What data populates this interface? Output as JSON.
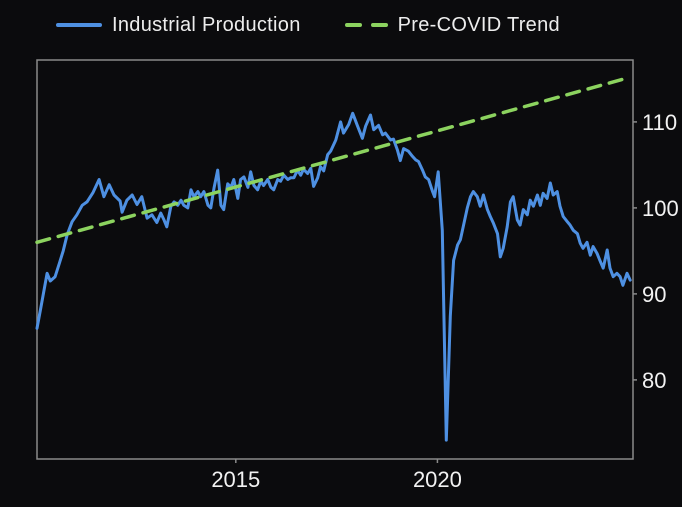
{
  "colors": {
    "background": "#0b0b0d",
    "industrial_production": "#4e90e2",
    "pre_covid_trend": "#8cd35f",
    "frame": "#8a8a8a",
    "text": "#f2f2f2"
  },
  "chart_data": {
    "type": "line",
    "title": "",
    "xlabel": "",
    "ylabel": "",
    "grid": false,
    "legend_position": "top",
    "x_axis": {
      "ticks": [
        2015,
        2020
      ],
      "range": [
        2010.07,
        2024.85
      ]
    },
    "y_axis": {
      "ticks": [
        80,
        90,
        100,
        110
      ],
      "range": [
        70.8,
        117.2
      ],
      "side": "right"
    },
    "series": [
      {
        "name": "Industrial Production",
        "style": "solid",
        "color_key": "industrial_production",
        "points": [
          [
            2010.07,
            86.0
          ],
          [
            2010.17,
            88.5
          ],
          [
            2010.32,
            92.4
          ],
          [
            2010.4,
            91.5
          ],
          [
            2010.52,
            92.0
          ],
          [
            2010.62,
            93.5
          ],
          [
            2010.72,
            95.0
          ],
          [
            2010.82,
            96.9
          ],
          [
            2010.94,
            98.4
          ],
          [
            2011.06,
            99.2
          ],
          [
            2011.19,
            100.3
          ],
          [
            2011.31,
            100.7
          ],
          [
            2011.46,
            101.8
          ],
          [
            2011.61,
            103.3
          ],
          [
            2011.73,
            101.3
          ],
          [
            2011.86,
            102.7
          ],
          [
            2011.98,
            101.5
          ],
          [
            2012.13,
            100.8
          ],
          [
            2012.18,
            99.5
          ],
          [
            2012.3,
            100.9
          ],
          [
            2012.43,
            101.5
          ],
          [
            2012.55,
            100.4
          ],
          [
            2012.67,
            101.3
          ],
          [
            2012.8,
            98.8
          ],
          [
            2012.92,
            99.2
          ],
          [
            2013.04,
            98.3
          ],
          [
            2013.14,
            99.4
          ],
          [
            2013.22,
            98.6
          ],
          [
            2013.29,
            97.8
          ],
          [
            2013.39,
            100.2
          ],
          [
            2013.47,
            100.7
          ],
          [
            2013.56,
            100.3
          ],
          [
            2013.64,
            100.9
          ],
          [
            2013.71,
            100.3
          ],
          [
            2013.81,
            100.0
          ],
          [
            2013.89,
            102.1
          ],
          [
            2013.96,
            101.3
          ],
          [
            2014.06,
            101.9
          ],
          [
            2014.13,
            101.3
          ],
          [
            2014.21,
            101.9
          ],
          [
            2014.31,
            100.3
          ],
          [
            2014.38,
            100.0
          ],
          [
            2014.46,
            102.3
          ],
          [
            2014.55,
            104.4
          ],
          [
            2014.63,
            100.3
          ],
          [
            2014.7,
            99.8
          ],
          [
            2014.8,
            102.8
          ],
          [
            2014.88,
            102.4
          ],
          [
            2014.95,
            103.3
          ],
          [
            2015.05,
            101.1
          ],
          [
            2015.12,
            103.3
          ],
          [
            2015.2,
            103.6
          ],
          [
            2015.3,
            102.4
          ],
          [
            2015.37,
            104.2
          ],
          [
            2015.45,
            102.6
          ],
          [
            2015.54,
            102.1
          ],
          [
            2015.62,
            103.1
          ],
          [
            2015.69,
            102.6
          ],
          [
            2015.79,
            103.3
          ],
          [
            2015.87,
            102.4
          ],
          [
            2015.94,
            102.1
          ],
          [
            2016.04,
            103.3
          ],
          [
            2016.11,
            103.1
          ],
          [
            2016.19,
            103.8
          ],
          [
            2016.29,
            103.3
          ],
          [
            2016.36,
            103.5
          ],
          [
            2016.44,
            103.5
          ],
          [
            2016.53,
            104.4
          ],
          [
            2016.61,
            103.8
          ],
          [
            2016.68,
            104.5
          ],
          [
            2016.78,
            104.0
          ],
          [
            2016.86,
            104.6
          ],
          [
            2016.93,
            102.5
          ],
          [
            2017.03,
            103.5
          ],
          [
            2017.1,
            104.8
          ],
          [
            2017.18,
            104.3
          ],
          [
            2017.28,
            106.2
          ],
          [
            2017.35,
            106.6
          ],
          [
            2017.48,
            107.9
          ],
          [
            2017.6,
            110.0
          ],
          [
            2017.67,
            108.7
          ],
          [
            2017.8,
            109.7
          ],
          [
            2017.9,
            111.0
          ],
          [
            2018.02,
            109.5
          ],
          [
            2018.14,
            108.1
          ],
          [
            2018.22,
            109.5
          ],
          [
            2018.34,
            110.8
          ],
          [
            2018.42,
            109.1
          ],
          [
            2018.54,
            109.6
          ],
          [
            2018.64,
            108.5
          ],
          [
            2018.71,
            108.7
          ],
          [
            2018.84,
            107.9
          ],
          [
            2018.91,
            108.0
          ],
          [
            2019.01,
            106.7
          ],
          [
            2019.08,
            105.5
          ],
          [
            2019.16,
            106.9
          ],
          [
            2019.28,
            106.6
          ],
          [
            2019.38,
            106.0
          ],
          [
            2019.46,
            105.6
          ],
          [
            2019.53,
            105.4
          ],
          [
            2019.63,
            104.4
          ],
          [
            2019.7,
            103.6
          ],
          [
            2019.78,
            103.3
          ],
          [
            2019.88,
            101.9
          ],
          [
            2019.93,
            101.3
          ],
          [
            2020.02,
            104.2
          ],
          [
            2020.12,
            97.4
          ],
          [
            2020.22,
            73.0
          ],
          [
            2020.32,
            87.4
          ],
          [
            2020.4,
            93.9
          ],
          [
            2020.5,
            95.7
          ],
          [
            2020.57,
            96.3
          ],
          [
            2020.64,
            97.8
          ],
          [
            2020.74,
            100.0
          ],
          [
            2020.82,
            101.3
          ],
          [
            2020.89,
            101.9
          ],
          [
            2020.99,
            101.3
          ],
          [
            2021.06,
            100.2
          ],
          [
            2021.14,
            101.5
          ],
          [
            2021.24,
            99.8
          ],
          [
            2021.31,
            99.0
          ],
          [
            2021.39,
            98.2
          ],
          [
            2021.49,
            97.0
          ],
          [
            2021.56,
            94.3
          ],
          [
            2021.63,
            95.3
          ],
          [
            2021.73,
            97.8
          ],
          [
            2021.81,
            100.7
          ],
          [
            2021.88,
            101.3
          ],
          [
            2021.98,
            98.6
          ],
          [
            2022.05,
            98.0
          ],
          [
            2022.13,
            99.8
          ],
          [
            2022.23,
            99.2
          ],
          [
            2022.3,
            100.9
          ],
          [
            2022.38,
            100.2
          ],
          [
            2022.48,
            101.5
          ],
          [
            2022.55,
            100.3
          ],
          [
            2022.62,
            101.7
          ],
          [
            2022.72,
            101.1
          ],
          [
            2022.8,
            102.9
          ],
          [
            2022.87,
            101.5
          ],
          [
            2022.97,
            101.9
          ],
          [
            2023.04,
            100.2
          ],
          [
            2023.12,
            99.0
          ],
          [
            2023.22,
            98.4
          ],
          [
            2023.29,
            98.0
          ],
          [
            2023.37,
            97.4
          ],
          [
            2023.47,
            97.0
          ],
          [
            2023.54,
            95.9
          ],
          [
            2023.61,
            95.3
          ],
          [
            2023.71,
            96.0
          ],
          [
            2023.79,
            94.5
          ],
          [
            2023.86,
            95.5
          ],
          [
            2023.96,
            94.7
          ],
          [
            2024.03,
            93.9
          ],
          [
            2024.11,
            93.0
          ],
          [
            2024.21,
            95.1
          ],
          [
            2024.28,
            93.0
          ],
          [
            2024.36,
            92.0
          ],
          [
            2024.45,
            92.4
          ],
          [
            2024.53,
            92.0
          ],
          [
            2024.6,
            91.0
          ],
          [
            2024.7,
            92.4
          ],
          [
            2024.78,
            91.6
          ]
        ]
      },
      {
        "name": "Pre-COVID Trend",
        "style": "dashed",
        "color_key": "pre_covid_trend",
        "points": [
          [
            2010.07,
            96.0
          ],
          [
            2024.78,
            115.2
          ]
        ]
      }
    ]
  }
}
